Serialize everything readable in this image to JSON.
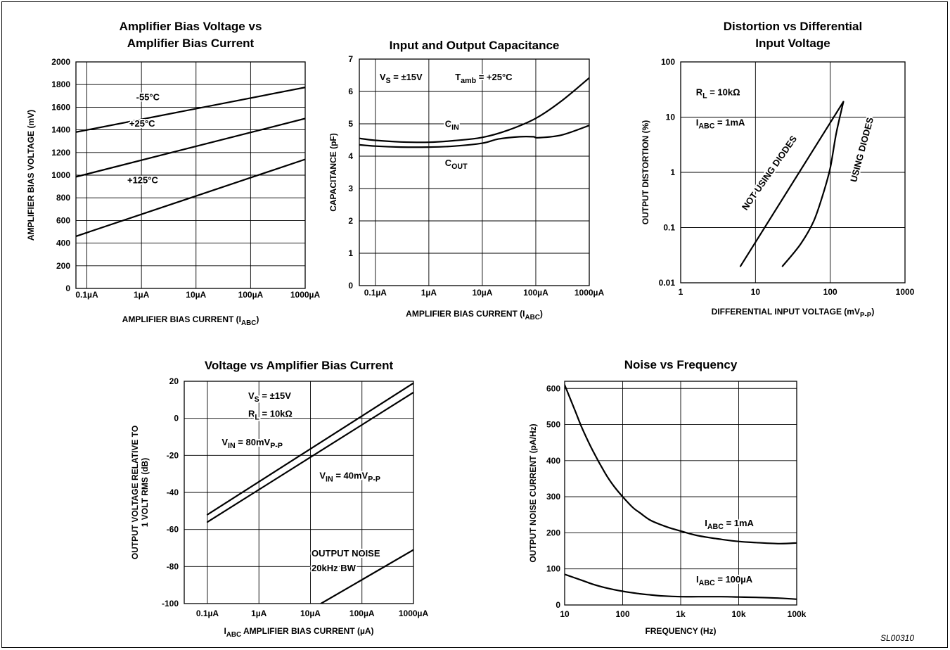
{
  "figure_code": "SL00310",
  "chart_data": [
    {
      "type": "line",
      "title": [
        "Amplifier Bias Voltage vs",
        "Amplifier Bias Current"
      ],
      "xlabel": [
        {
          "t": "AMPLIFIER BIAS CURRENT (I"
        },
        {
          "t": "ABC",
          "sub": true
        },
        {
          "t": ")"
        }
      ],
      "ylabel": [
        [
          {
            "t": "AMPLIFIER BIAS VOLTAGE (mV)"
          }
        ]
      ],
      "xscale": "log",
      "yscale": "linear",
      "xlim": [
        0.0631,
        1000
      ],
      "ylim": [
        0,
        2000
      ],
      "xgrid": [
        0.1,
        1,
        10,
        100,
        1000
      ],
      "ygrid": [
        200,
        400,
        600,
        800,
        1000,
        1200,
        1400,
        1600,
        1800,
        2000
      ],
      "xticks": [
        {
          "v": 0.1,
          "label": "0.1µA"
        },
        {
          "v": 1,
          "label": "1µA"
        },
        {
          "v": 10,
          "label": "10µA"
        },
        {
          "v": 100,
          "label": "100µA"
        },
        {
          "v": 1000,
          "label": "1000µA"
        }
      ],
      "yticks": [
        {
          "v": 0,
          "label": "0"
        },
        {
          "v": 200,
          "label": "200"
        },
        {
          "v": 400,
          "label": "400"
        },
        {
          "v": 600,
          "label": "600"
        },
        {
          "v": 800,
          "label": "800"
        },
        {
          "v": 1000,
          "label": "1000"
        },
        {
          "v": 1200,
          "label": "1200"
        },
        {
          "v": 1400,
          "label": "1400"
        },
        {
          "v": 1600,
          "label": "1600"
        },
        {
          "v": 1800,
          "label": "1800"
        },
        {
          "v": 2000,
          "label": "2000"
        }
      ],
      "series": [
        {
          "name": "-55°C",
          "x": [
            0.0631,
            1000
          ],
          "y": [
            1380,
            1775
          ]
        },
        {
          "name": "+25°C",
          "x": [
            0.0631,
            1000
          ],
          "y": [
            985,
            1500
          ]
        },
        {
          "name": "+125°C",
          "x": [
            0.0631,
            1000
          ],
          "y": [
            460,
            1140
          ]
        }
      ],
      "annotations": [
        {
          "x": 0.8,
          "y": 1660,
          "parts": [
            {
              "t": "-55°C"
            }
          ]
        },
        {
          "x": 0.6,
          "y": 1430,
          "parts": [
            {
              "t": "+25°C"
            }
          ]
        },
        {
          "x": 0.55,
          "y": 930,
          "parts": [
            {
              "t": "+125°C"
            }
          ]
        }
      ]
    },
    {
      "type": "line",
      "title": [
        "Input and Output Capacitance"
      ],
      "xlabel": [
        {
          "t": "AMPLIFIER BIAS CURRENT (I"
        },
        {
          "t": "ABC",
          "sub": true
        },
        {
          "t": ")"
        }
      ],
      "ylabel": [
        [
          {
            "t": "CAPACITANCE (pF)"
          }
        ]
      ],
      "xscale": "log",
      "yscale": "linear",
      "xlim": [
        0.0501,
        1000
      ],
      "ylim": [
        0,
        7
      ],
      "xgrid": [
        0.1,
        1,
        10,
        100,
        1000
      ],
      "ygrid": [
        1,
        2,
        3,
        4,
        5,
        6,
        7
      ],
      "xticks": [
        {
          "v": 0.1,
          "label": "0.1µA"
        },
        {
          "v": 1,
          "label": "1µA"
        },
        {
          "v": 10,
          "label": "10µA"
        },
        {
          "v": 100,
          "label": "100µA"
        },
        {
          "v": 1000,
          "label": "1000µA"
        }
      ],
      "yticks": [
        {
          "v": 0,
          "label": "0"
        },
        {
          "v": 1,
          "label": "1"
        },
        {
          "v": 2,
          "label": "2"
        },
        {
          "v": 3,
          "label": "3"
        },
        {
          "v": 4,
          "label": "4"
        },
        {
          "v": 5,
          "label": "5"
        },
        {
          "v": 6,
          "label": "6"
        },
        {
          "v": 7,
          "label": "7"
        }
      ],
      "series": [
        {
          "name": "CIN",
          "x": [
            0.0501,
            0.1,
            0.3,
            1,
            3,
            10,
            30,
            100,
            300,
            1000
          ],
          "y": [
            4.55,
            4.49,
            4.44,
            4.43,
            4.48,
            4.58,
            4.8,
            5.17,
            5.7,
            6.42
          ]
        },
        {
          "name": "COUT",
          "x": [
            0.0501,
            0.1,
            0.3,
            1,
            3,
            10,
            20,
            50,
            90,
            110,
            300,
            1000
          ],
          "y": [
            4.35,
            4.31,
            4.28,
            4.28,
            4.31,
            4.4,
            4.53,
            4.6,
            4.6,
            4.57,
            4.65,
            4.95
          ]
        }
      ],
      "annotations": [
        {
          "x": 0.12,
          "y": 6.35,
          "parts": [
            {
              "t": "V"
            },
            {
              "t": "S",
              "sub": true
            },
            {
              "t": " = ±15V"
            }
          ]
        },
        {
          "x": 3.1,
          "y": 6.35,
          "parts": [
            {
              "t": "T"
            },
            {
              "t": "amb",
              "sub": true
            },
            {
              "t": " = +25°C"
            }
          ]
        },
        {
          "x": 2.0,
          "y": 4.9,
          "parts": [
            {
              "t": "C"
            },
            {
              "t": "IN",
              "sub": true
            }
          ]
        },
        {
          "x": 2.0,
          "y": 3.7,
          "parts": [
            {
              "t": "C"
            },
            {
              "t": "OUT",
              "sub": true
            }
          ]
        }
      ]
    },
    {
      "type": "line",
      "title": [
        "Distortion vs Differential",
        "Input Voltage"
      ],
      "xlabel": [
        {
          "t": "DIFFERENTIAL INPUT VOLTAGE (mV"
        },
        {
          "t": "P-P",
          "sub": true
        },
        {
          "t": ")"
        }
      ],
      "ylabel": [
        [
          {
            "t": "OUTPUT DISTORTION (%)"
          }
        ]
      ],
      "xscale": "log",
      "yscale": "log",
      "xlim": [
        1,
        1000
      ],
      "ylim": [
        0.01,
        100
      ],
      "xgrid": [
        10,
        100,
        1000
      ],
      "ygrid": [
        0.1,
        1,
        10,
        100
      ],
      "xticks": [
        {
          "v": 1,
          "label": "1"
        },
        {
          "v": 10,
          "label": "10"
        },
        {
          "v": 100,
          "label": "100"
        },
        {
          "v": 1000,
          "label": "1000"
        }
      ],
      "yticks": [
        {
          "v": 0.01,
          "label": "0.01"
        },
        {
          "v": 0.1,
          "label": "0.1"
        },
        {
          "v": 1,
          "label": "1"
        },
        {
          "v": 10,
          "label": "10"
        },
        {
          "v": 100,
          "label": "100"
        }
      ],
      "series": [
        {
          "name": "NOT USING DIODES",
          "x": [
            6.3,
            150
          ],
          "y": [
            0.02,
            19
          ]
        },
        {
          "name": "USING DIODES",
          "x": [
            23,
            40,
            60,
            80,
            100,
            120,
            150
          ],
          "y": [
            0.02,
            0.05,
            0.13,
            0.4,
            1.2,
            5,
            19
          ]
        }
      ],
      "annotations": [
        {
          "x": 1.6,
          "y": 25,
          "parts": [
            {
              "t": "R"
            },
            {
              "t": "L",
              "sub": true
            },
            {
              "t": " = 10kΩ"
            }
          ]
        },
        {
          "x": 1.6,
          "y": 7,
          "parts": [
            {
              "t": "I"
            },
            {
              "t": "ABC",
              "sub": true
            },
            {
              "t": " = 1mA"
            }
          ]
        },
        {
          "x": 7.6,
          "y": 0.2,
          "rot": -55,
          "parts": [
            {
              "t": "NOT USING DIODES"
            }
          ]
        },
        {
          "x": 223,
          "y": 0.65,
          "rot": -75,
          "parts": [
            {
              "t": "USING DIODES"
            }
          ]
        }
      ]
    },
    {
      "type": "line",
      "title": [
        "Voltage vs Amplifier Bias Current"
      ],
      "xlabel": [
        {
          "t": "I"
        },
        {
          "t": "ABC",
          "sub": true
        },
        {
          "t": " AMPLIFIER BIAS CURRENT (µA)"
        }
      ],
      "ylabel": [
        [
          {
            "t": "OUTPUT VOLTAGE RELATIVE TO"
          }
        ],
        [
          {
            "t": "1 VOLT RMS (dB)"
          }
        ]
      ],
      "xscale": "log",
      "yscale": "linear",
      "xlim": [
        0.0355,
        1000
      ],
      "ylim": [
        -100,
        20
      ],
      "xgrid": [
        0.1,
        1,
        10,
        100,
        1000
      ],
      "ygrid": [
        -80,
        -60,
        -40,
        -20,
        0,
        20
      ],
      "xticks": [
        {
          "v": 0.1,
          "label": "0.1µA"
        },
        {
          "v": 1,
          "label": "1µA"
        },
        {
          "v": 10,
          "label": "10µA"
        },
        {
          "v": 100,
          "label": "100µA"
        },
        {
          "v": 1000,
          "label": "1000µA"
        }
      ],
      "yticks": [
        {
          "v": -100,
          "label": "-100"
        },
        {
          "v": -80,
          "label": "-80"
        },
        {
          "v": -60,
          "label": "-60"
        },
        {
          "v": -40,
          "label": "-40"
        },
        {
          "v": -20,
          "label": "-20"
        },
        {
          "v": 0,
          "label": "0"
        },
        {
          "v": 20,
          "label": "20"
        }
      ],
      "series": [
        {
          "name": "VIN = 80mVP-P",
          "x": [
            0.1,
            1000
          ],
          "y": [
            -52,
            19
          ]
        },
        {
          "name": "VIN = 40mVP-P",
          "x": [
            0.1,
            1000
          ],
          "y": [
            -56,
            14
          ]
        },
        {
          "name": "OUTPUT NOISE 20kHz BW",
          "x": [
            16,
            1000
          ],
          "y": [
            -100,
            -71
          ]
        }
      ],
      "annotations": [
        {
          "x": 0.62,
          "y": 10.5,
          "parts": [
            {
              "t": "V"
            },
            {
              "t": "S",
              "sub": true
            },
            {
              "t": " = ±15V"
            }
          ]
        },
        {
          "x": 0.62,
          "y": 0.8,
          "parts": [
            {
              "t": "R"
            },
            {
              "t": "L",
              "sub": true
            },
            {
              "t": " = 10kΩ"
            }
          ]
        },
        {
          "x": 0.19,
          "y": -14.5,
          "parts": [
            {
              "t": "V"
            },
            {
              "t": "IN",
              "sub": true
            },
            {
              "t": " = 80mV"
            },
            {
              "t": "P-P",
              "sub": true
            }
          ]
        },
        {
          "x": 15,
          "y": -32.5,
          "parts": [
            {
              "t": "V"
            },
            {
              "t": "IN",
              "sub": true
            },
            {
              "t": " = 40mV"
            },
            {
              "t": "P-P",
              "sub": true
            }
          ]
        },
        {
          "x": 10.5,
          "y": -74.5,
          "parts": [
            {
              "t": "OUTPUT NOISE"
            }
          ]
        },
        {
          "x": 10.5,
          "y": -82.5,
          "parts": [
            {
              "t": "20kHz BW"
            }
          ]
        }
      ]
    },
    {
      "type": "line",
      "title": [
        "Noise vs Frequency"
      ],
      "xlabel": [
        {
          "t": "FREQUENCY (Hz)"
        }
      ],
      "ylabel": [
        [
          {
            "t": "OUTPUT NOISE CURRENT (pA/Hz)"
          }
        ]
      ],
      "xscale": "log",
      "yscale": "linear",
      "xlim": [
        10,
        100000
      ],
      "ylim": [
        0,
        620
      ],
      "xgrid": [
        100,
        1000,
        10000,
        100000
      ],
      "ygrid": [
        100,
        200,
        300,
        400,
        500,
        600
      ],
      "xticks": [
        {
          "v": 10,
          "label": "10"
        },
        {
          "v": 100,
          "label": "100"
        },
        {
          "v": 1000,
          "label": "1k"
        },
        {
          "v": 10000,
          "label": "10k"
        },
        {
          "v": 100000,
          "label": "100k"
        }
      ],
      "yticks": [
        {
          "v": 0,
          "label": "0"
        },
        {
          "v": 100,
          "label": "100"
        },
        {
          "v": 200,
          "label": "200"
        },
        {
          "v": 300,
          "label": "300"
        },
        {
          "v": 400,
          "label": "400"
        },
        {
          "v": 500,
          "label": "500"
        },
        {
          "v": 600,
          "label": "600"
        }
      ],
      "series": [
        {
          "name": "IABC = 1mA",
          "x": [
            10,
            15,
            20,
            30,
            50,
            70,
            100,
            150,
            200,
            300,
            500,
            700,
            1000,
            2000,
            5000,
            10000,
            20000,
            50000,
            100000
          ],
          "y": [
            610,
            540,
            490,
            430,
            365,
            330,
            300,
            270,
            255,
            235,
            220,
            212,
            205,
            192,
            182,
            176,
            173,
            170,
            172
          ]
        },
        {
          "name": "IABC = 100µA",
          "x": [
            10,
            20,
            30,
            50,
            100,
            200,
            300,
            500,
            1000,
            2000,
            5000,
            10000,
            20000,
            50000,
            100000
          ],
          "y": [
            85,
            68,
            58,
            48,
            38,
            31,
            28,
            25,
            23,
            23,
            23,
            22,
            21,
            19,
            16
          ]
        }
      ],
      "annotations": [
        {
          "x": 2600,
          "y": 218,
          "parts": [
            {
              "t": "I"
            },
            {
              "t": "ABC",
              "sub": true
            },
            {
              "t": " = 1mA"
            }
          ]
        },
        {
          "x": 1850,
          "y": 62,
          "parts": [
            {
              "t": "I"
            },
            {
              "t": "ABC",
              "sub": true
            },
            {
              "t": " = 100µA"
            }
          ]
        }
      ]
    }
  ]
}
